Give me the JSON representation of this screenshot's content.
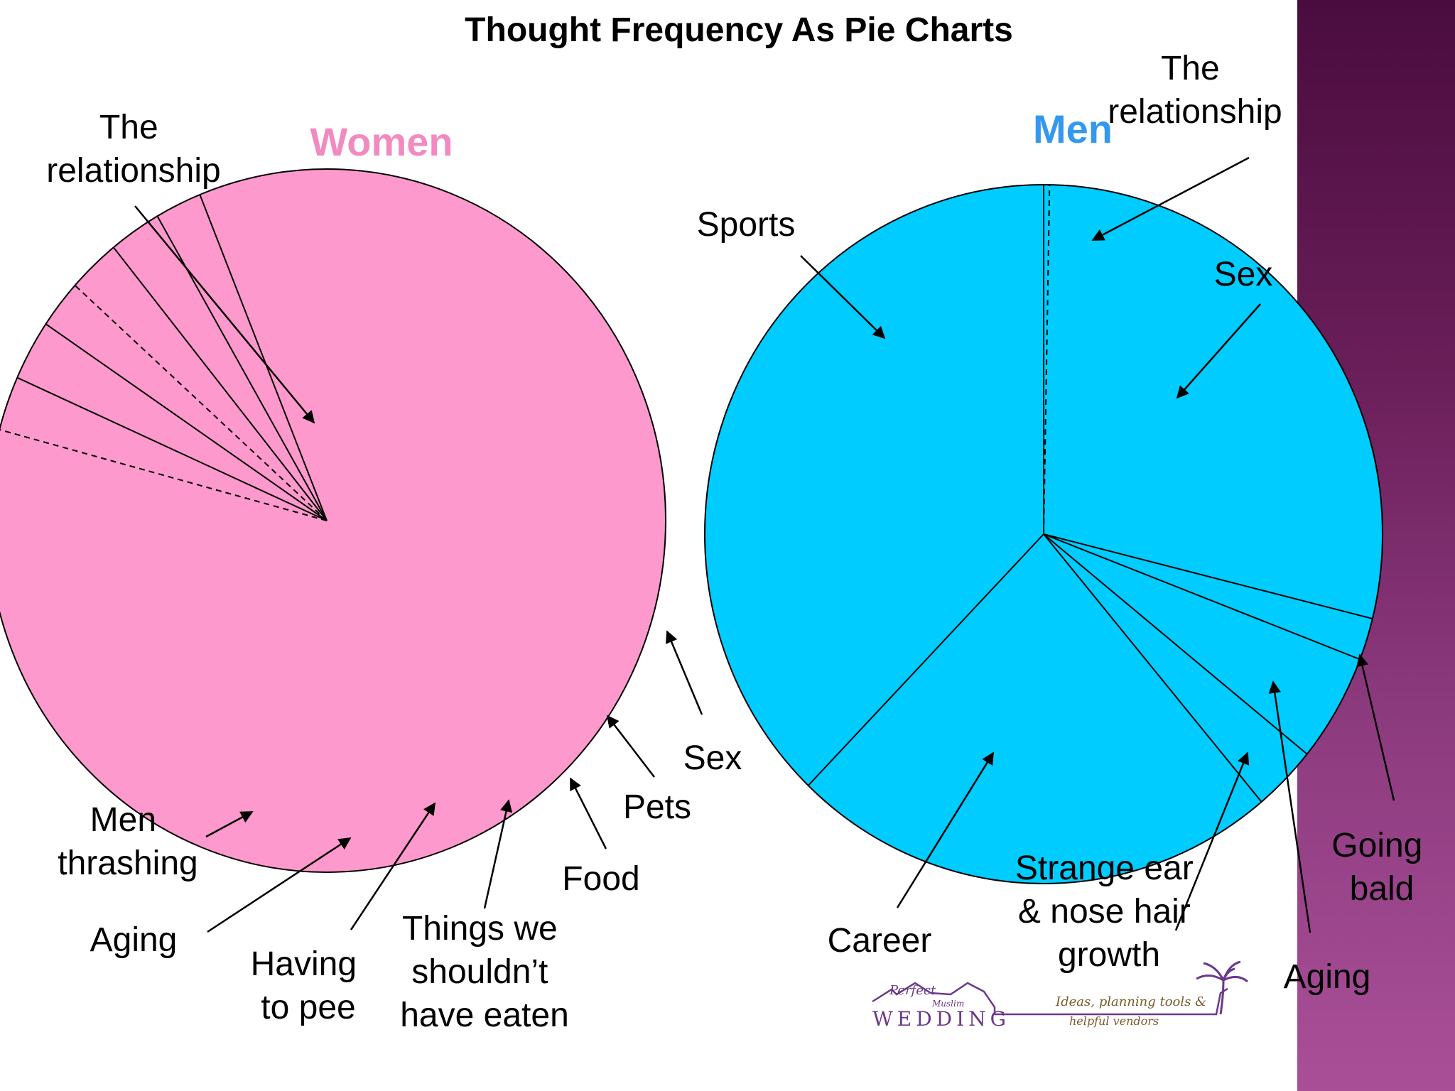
{
  "title": "Thought Frequency As Pie Charts",
  "colors": {
    "women": "#fd99cc",
    "women_title": "#f28ac1",
    "men": "#00ccff",
    "men_title": "#3399ee",
    "band": "#7a2a6c"
  },
  "chart_data": [
    {
      "type": "pie",
      "title": "Women",
      "unit": "degrees",
      "slices": [
        {
          "label": "The relationship",
          "value": 285,
          "start": 0
        },
        {
          "label": "Sex",
          "value": 9,
          "start": 285
        },
        {
          "label": "Pets",
          "value": 10,
          "start": 294
        },
        {
          "label": "Food",
          "value": 8,
          "start": 304
        },
        {
          "label": "Things we shouldn’t have eaten",
          "value": 9,
          "start": 312
        },
        {
          "label": "Having to pee",
          "value": 9,
          "start": 321
        },
        {
          "label": "Aging",
          "value": 8,
          "start": 330
        },
        {
          "label": "Men thrashing",
          "value": 22,
          "start": 338
        }
      ]
    },
    {
      "type": "pie",
      "title": "Men",
      "unit": "degrees",
      "slices": [
        {
          "label": "The relationship",
          "value": 1,
          "start": 0
        },
        {
          "label": "Sex",
          "value": 103,
          "start": 1
        },
        {
          "label": "Going bald",
          "value": 7,
          "start": 104
        },
        {
          "label": "Aging",
          "value": 18,
          "start": 111
        },
        {
          "label": "Strange ear & nose hair growth",
          "value": 11,
          "start": 129
        },
        {
          "label": "Career",
          "value": 84,
          "start": 140
        },
        {
          "label": "Sports",
          "value": 136,
          "start": 224
        }
      ]
    }
  ],
  "labels": {
    "women": {
      "relationship": [
        "The",
        "relationship"
      ],
      "sex": [
        "Sex"
      ],
      "pets": [
        "Pets"
      ],
      "food": [
        "Food"
      ],
      "things": [
        "Things we",
        "shouldn’t",
        "have eaten"
      ],
      "pee": [
        "Having",
        "to pee"
      ],
      "aging": [
        "Aging"
      ],
      "thrashing": [
        "Men",
        "thrashing"
      ]
    },
    "men": {
      "relationship": [
        "The",
        "relationship"
      ],
      "sports": [
        "Sports"
      ],
      "sex": [
        "Sex"
      ],
      "career": [
        "Career"
      ],
      "ear": [
        "Strange ear",
        "& nose hair",
        "growth"
      ],
      "aging": [
        "Aging"
      ],
      "bald": [
        "Going",
        "bald"
      ]
    }
  },
  "logo": {
    "perfect": "Perfect",
    "muslim": "Muslim",
    "wedding": "WEDDING",
    "tagline_1": "Ideas, planning tools &",
    "tagline_2": "helpful vendors"
  }
}
